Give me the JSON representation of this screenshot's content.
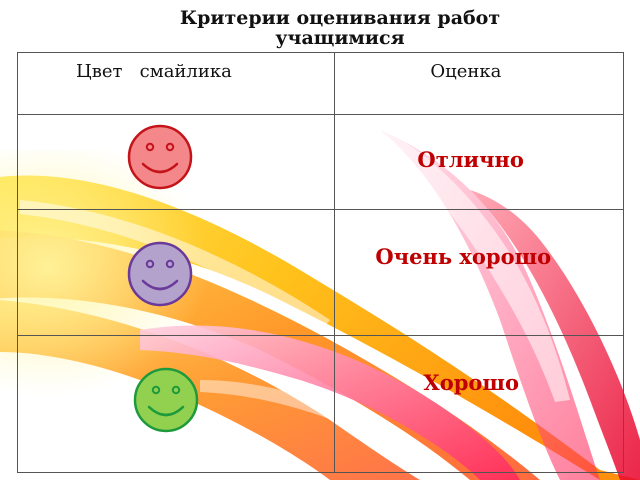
{
  "slide": {
    "title": "Критерии оценивания работ учащимися"
  },
  "table": {
    "headers": {
      "color": "Цвет   смайлика",
      "grade": "Оценка"
    },
    "rows": [
      {
        "smiley": "red-smiley-icon",
        "grade": "Отлично",
        "color": "#f4878a",
        "stroke": "#c4141a"
      },
      {
        "smiley": "purple-smiley-icon",
        "grade": "Очень хорошо",
        "color": "#b3a2cc",
        "stroke": "#6a3a9a"
      },
      {
        "smiley": "green-smiley-icon",
        "grade": "Хорошо",
        "color": "#92d050",
        "stroke": "#1e9a3c"
      }
    ]
  },
  "theme": {
    "grade_text_color": "#c00000",
    "border_color": "#555555"
  }
}
